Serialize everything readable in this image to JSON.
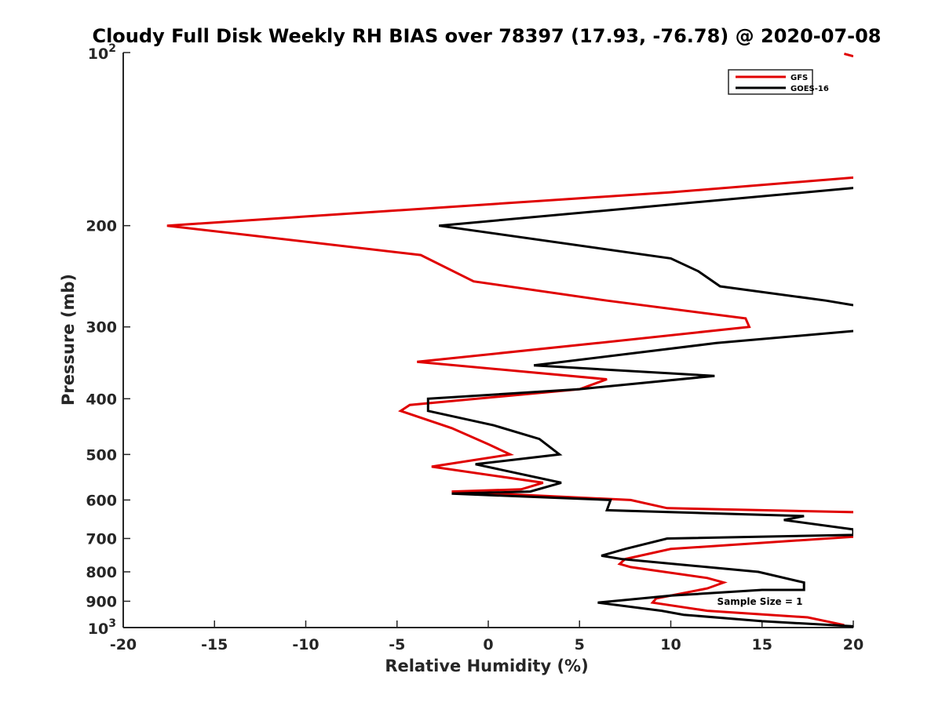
{
  "chart_data": {
    "type": "line",
    "title": "Cloudy Full Disk Weekly RH BIAS over 78397 (17.93, -76.78) @ 2020-07-08",
    "xlabel": "Relative Humidity (%)",
    "ylabel": "Pressure (mb)",
    "xlim": [
      -20,
      20
    ],
    "ylim": [
      100,
      1000
    ],
    "y_scale": "log",
    "y_reversed": true,
    "grid": false,
    "legend_position": "top-right",
    "xticks": [
      "-20",
      "-15",
      "-10",
      "-5",
      "0",
      "5",
      "10",
      "15",
      "20"
    ],
    "yticks": [
      {
        "value": 200,
        "label": "200"
      },
      {
        "value": 300,
        "label": "300"
      },
      {
        "value": 400,
        "label": "400"
      },
      {
        "value": 500,
        "label": "500"
      },
      {
        "value": 600,
        "label": "600"
      },
      {
        "value": 700,
        "label": "700"
      },
      {
        "value": 800,
        "label": "800"
      },
      {
        "value": 900,
        "label": "900"
      }
    ],
    "ytick_top": {
      "base": "10",
      "exp": "2"
    },
    "ytick_bottom": {
      "base": "10",
      "exp": "3"
    },
    "annotation": "Sample Size = 1",
    "series": [
      {
        "name": "GFS",
        "color": "#e00000",
        "points": [
          [
            20.0,
            165
          ],
          [
            10,
            175
          ],
          [
            -17.6,
            200
          ],
          [
            -3.7,
            225
          ],
          [
            -0.8,
            250
          ],
          [
            6.5,
            270
          ],
          [
            14.1,
            290
          ],
          [
            14.3,
            300
          ],
          [
            6,
            320
          ],
          [
            -3.9,
            345
          ],
          [
            6.5,
            370
          ],
          [
            5,
            385
          ],
          [
            -4.3,
            410
          ],
          [
            -4.8,
            420
          ],
          [
            -2,
            450
          ],
          [
            0,
            480
          ],
          [
            1.2,
            500
          ],
          [
            -3.1,
            525
          ],
          [
            3,
            560
          ],
          [
            1.8,
            575
          ],
          [
            -2,
            580
          ],
          [
            7.8,
            600
          ],
          [
            9.8,
            620
          ],
          [
            20,
            630
          ]
        ],
        "points2": [
          [
            20,
            695
          ],
          [
            10,
            730
          ],
          [
            7.5,
            760
          ],
          [
            7.2,
            775
          ],
          [
            7.8,
            785
          ],
          [
            12,
            820
          ],
          [
            12.9,
            835
          ],
          [
            12,
            855
          ],
          [
            9.2,
            890
          ],
          [
            9,
            905
          ],
          [
            12,
            935
          ],
          [
            17.5,
            960
          ],
          [
            19.5,
            990
          ]
        ],
        "top_fragment": [
          [
            20.0,
            101.5
          ],
          [
            19.5,
            100.5
          ]
        ]
      },
      {
        "name": "GOES-16",
        "color": "#000000",
        "points": [
          [
            20,
            172
          ],
          [
            -2.7,
            200
          ],
          [
            10,
            228
          ],
          [
            11.5,
            240
          ],
          [
            12.7,
            255
          ],
          [
            18.5,
            270
          ],
          [
            20,
            275
          ]
        ],
        "points2": [
          [
            20,
            305
          ],
          [
            12.5,
            320
          ],
          [
            2.5,
            350
          ],
          [
            12.4,
            365
          ],
          [
            5,
            385
          ],
          [
            -3.3,
            400
          ],
          [
            -3.3,
            420
          ],
          [
            0.3,
            445
          ],
          [
            2.8,
            470
          ],
          [
            3.9,
            500
          ],
          [
            -0.7,
            520
          ],
          [
            4,
            560
          ],
          [
            2.3,
            580
          ],
          [
            -2,
            585
          ],
          [
            6.7,
            600
          ],
          [
            6.5,
            625
          ],
          [
            17.3,
            640
          ],
          [
            16.2,
            650
          ],
          [
            20,
            675
          ],
          [
            20,
            690
          ],
          [
            9.8,
            700
          ],
          [
            7.5,
            730
          ],
          [
            6.2,
            750
          ],
          [
            7.3,
            760
          ],
          [
            14.8,
            800
          ],
          [
            17.3,
            835
          ],
          [
            17.3,
            860
          ],
          [
            15,
            860
          ],
          [
            10,
            880
          ],
          [
            6,
            905
          ],
          [
            9.5,
            935
          ],
          [
            10.7,
            950
          ],
          [
            15,
            975
          ],
          [
            20,
            995
          ]
        ]
      }
    ]
  }
}
